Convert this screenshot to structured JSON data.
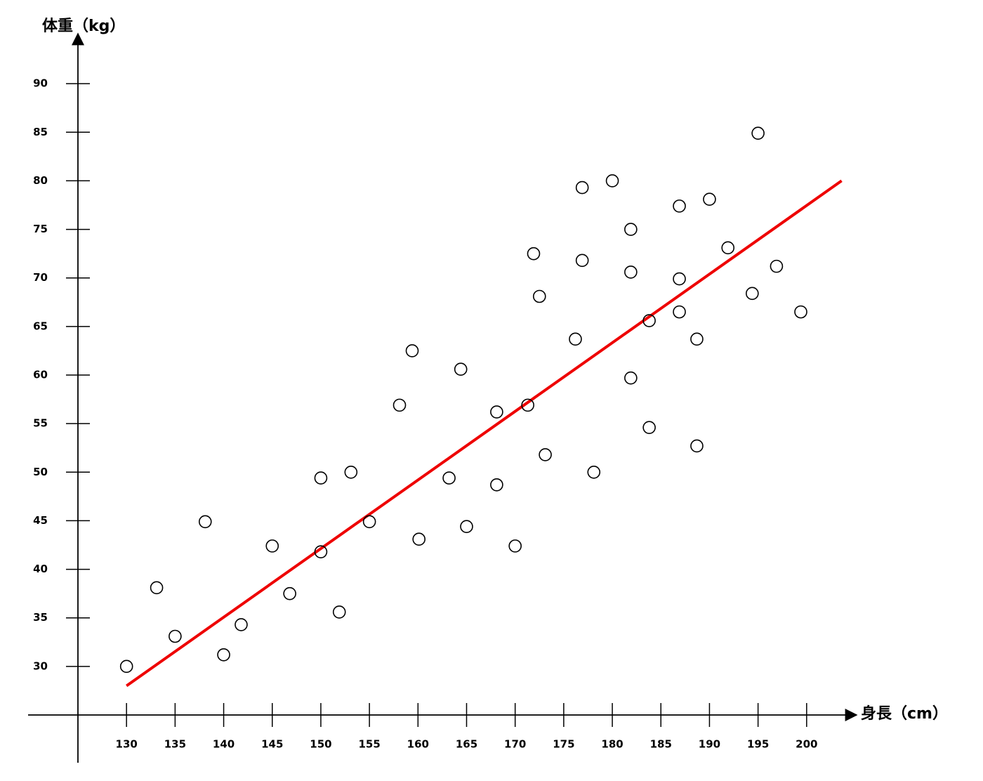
{
  "chart_data": {
    "type": "scatter",
    "x_label": "身長（cm）",
    "y_label": "体重（kg）",
    "x": [
      130,
      133.1,
      135,
      138.1,
      140,
      141.8,
      145,
      146.8,
      150,
      150,
      151.9,
      153.1,
      155,
      158.1,
      159.4,
      160.1,
      163.2,
      164.4,
      165,
      168.1,
      168.1,
      170,
      171.3,
      171.9,
      172.5,
      173.1,
      176.2,
      176.9,
      176.9,
      178.1,
      180,
      181.9,
      181.9,
      181.9,
      183.8,
      183.8,
      186.9,
      186.9,
      186.9,
      188.7,
      188.7,
      190,
      191.9,
      194.4,
      195,
      196.9,
      199.4
    ],
    "y": [
      30,
      38.1,
      33.1,
      44.9,
      31.2,
      34.3,
      42.4,
      37.5,
      49.4,
      41.8,
      35.6,
      50,
      44.9,
      56.9,
      62.5,
      43.1,
      49.4,
      60.6,
      44.4,
      56.2,
      48.7,
      42.4,
      56.9,
      72.5,
      68.1,
      51.8,
      63.7,
      79.3,
      71.8,
      50,
      80,
      75,
      70.6,
      59.7,
      65.6,
      54.6,
      77.4,
      69.9,
      66.5,
      63.7,
      52.7,
      78.1,
      73.1,
      68.4,
      84.9,
      71.2,
      66.5
    ],
    "point_color": "#000000",
    "fit_line": {
      "x": [
        130,
        203.6
      ],
      "y": [
        28,
        80
      ],
      "color": "#ee0000"
    },
    "xlim": [
      125,
      205
    ],
    "ylim": [
      25,
      95
    ],
    "xticks": [
      130,
      135,
      140,
      145,
      150,
      155,
      160,
      165,
      170,
      175,
      180,
      185,
      190,
      195,
      200
    ],
    "yticks": [
      30,
      35,
      40,
      45,
      50,
      55,
      60,
      65,
      70,
      75,
      80,
      85,
      90
    ]
  }
}
